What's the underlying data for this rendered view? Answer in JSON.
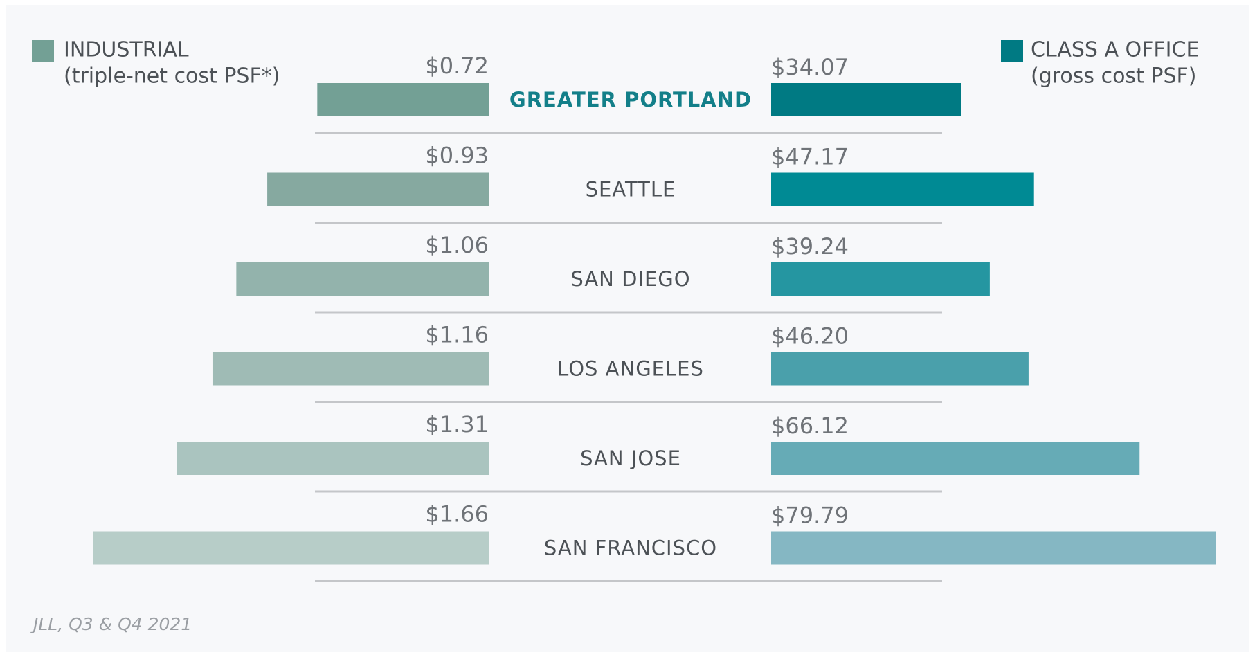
{
  "chart_data": {
    "type": "butterfly",
    "categories": [
      "GREATER PORTLAND",
      "SEATTLE",
      "SAN DIEGO",
      "LOS ANGELES",
      "SAN JOSE",
      "SAN FRANCISCO"
    ],
    "series": [
      {
        "name": "INDUSTRIAL",
        "note": "(triple-net cost PSF*)",
        "color": "#73a095",
        "colors": [
          "#73a095",
          "#86a9a0",
          "#93b3ac",
          "#9fbbb5",
          "#aac4bf",
          "#b7cdc8"
        ],
        "values": [
          0.72,
          0.93,
          1.06,
          1.16,
          1.31,
          1.66
        ],
        "value_labels": [
          "$0.72",
          "$0.93",
          "$1.06",
          "$1.16",
          "$1.31",
          "$1.66"
        ]
      },
      {
        "name": "CLASS A OFFICE",
        "note": "(gross cost PSF)",
        "color": "#007a83",
        "colors": [
          "#007a83",
          "#008a94",
          "#2596a1",
          "#4aa0ab",
          "#66abb6",
          "#85b7c3"
        ],
        "values": [
          34.07,
          47.17,
          39.24,
          46.2,
          66.12,
          79.79
        ],
        "value_labels": [
          "$34.07",
          "$47.17",
          "$39.24",
          "$46.20",
          "$66.12",
          "$79.79"
        ]
      }
    ],
    "source": "JLL, Q3 & Q4 2021"
  }
}
